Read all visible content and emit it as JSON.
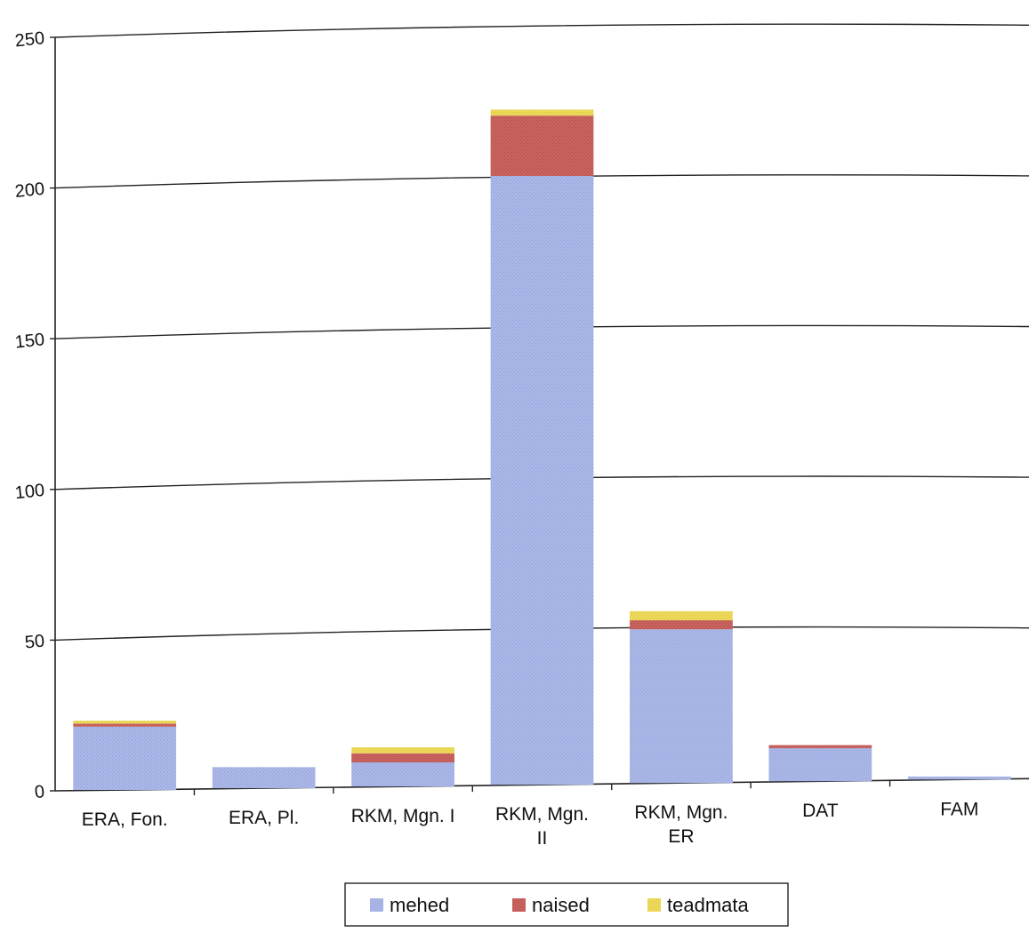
{
  "chart_data": {
    "type": "bar",
    "stacked": true,
    "categories": [
      [
        "ERA, Fon."
      ],
      [
        "ERA, Pl."
      ],
      [
        "RKM, Mgn. I"
      ],
      [
        "RKM, Mgn.",
        "II"
      ],
      [
        "RKM, Mgn.",
        "ER"
      ],
      [
        "DAT"
      ],
      [
        "FAM"
      ]
    ],
    "series": [
      {
        "name": "mehed",
        "color": "#a9b6e6",
        "values": [
          21,
          7,
          8,
          202,
          51,
          11,
          1
        ]
      },
      {
        "name": "naised",
        "color": "#c8625e",
        "values": [
          1,
          0,
          3,
          20,
          3,
          1,
          0
        ]
      },
      {
        "name": "teadmata",
        "color": "#ecd95a",
        "values": [
          1,
          0,
          2,
          2,
          3,
          0,
          0
        ]
      }
    ],
    "ylim": [
      0,
      250
    ],
    "yticks": [
      0,
      50,
      100,
      150,
      200,
      250
    ],
    "grid": true,
    "legend_position": "bottom"
  }
}
